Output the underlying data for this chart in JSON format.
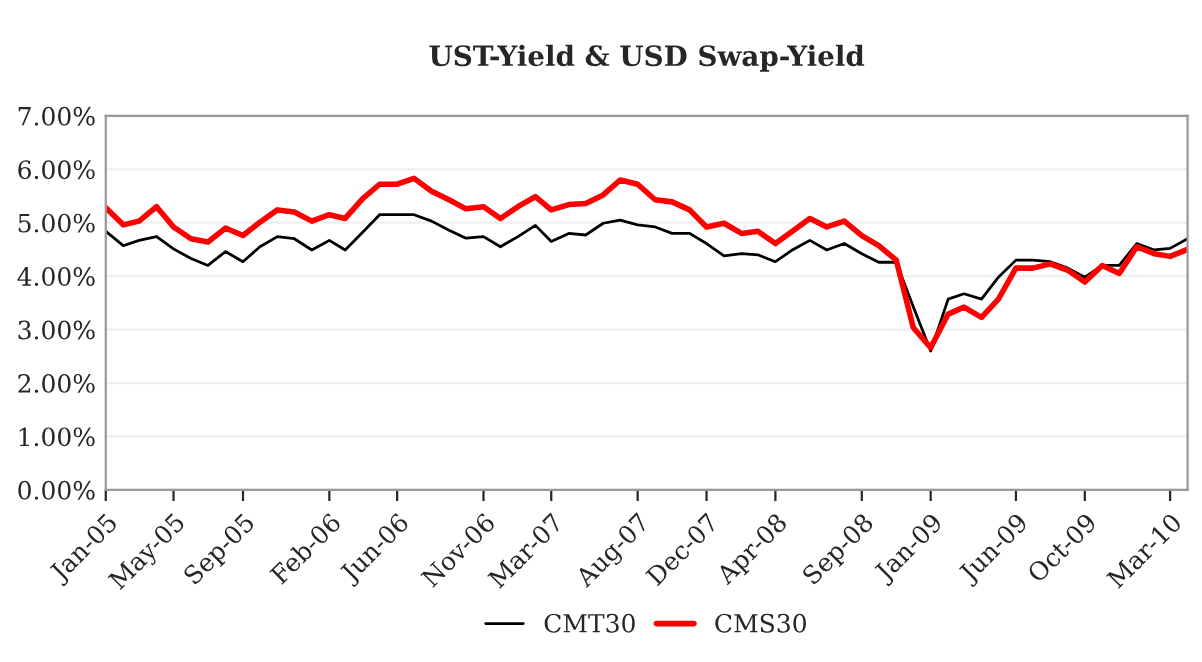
{
  "chart_data": {
    "type": "line",
    "title": "UST-Yield & USD Swap-Yield",
    "x": [
      "2005-01",
      "2005-02",
      "2005-03",
      "2005-04",
      "2005-05",
      "2005-06",
      "2005-07",
      "2005-08",
      "2005-09",
      "2005-10",
      "2005-11",
      "2005-12",
      "2006-01",
      "2006-02",
      "2006-03",
      "2006-04",
      "2006-05",
      "2006-06",
      "2006-07",
      "2006-08",
      "2006-09",
      "2006-10",
      "2006-11",
      "2006-12",
      "2007-01",
      "2007-02",
      "2007-03",
      "2007-04",
      "2007-05",
      "2007-06",
      "2007-07",
      "2007-08",
      "2007-09",
      "2007-10",
      "2007-11",
      "2007-12",
      "2008-01",
      "2008-02",
      "2008-03",
      "2008-04",
      "2008-05",
      "2008-06",
      "2008-07",
      "2008-08",
      "2008-09",
      "2008-10",
      "2008-11",
      "2008-12",
      "2009-01",
      "2009-02",
      "2009-03",
      "2009-04",
      "2009-05",
      "2009-06",
      "2009-07",
      "2009-08",
      "2009-09",
      "2009-10",
      "2009-11",
      "2009-12",
      "2010-01",
      "2010-02",
      "2010-03",
      "2010-04"
    ],
    "series": [
      {
        "name": "CMT30",
        "color": "#000000",
        "values": [
          4.84,
          4.57,
          4.67,
          4.74,
          4.51,
          4.33,
          4.2,
          4.46,
          4.27,
          4.55,
          4.74,
          4.7,
          4.49,
          4.67,
          4.49,
          4.82,
          5.15,
          5.15,
          5.15,
          5.03,
          4.86,
          4.71,
          4.74,
          4.55,
          4.74,
          4.95,
          4.65,
          4.8,
          4.77,
          4.99,
          5.05,
          4.96,
          4.92,
          4.8,
          4.8,
          4.61,
          4.38,
          4.42,
          4.4,
          4.27,
          4.49,
          4.67,
          4.49,
          4.61,
          4.42,
          4.26,
          4.26,
          3.43,
          2.6,
          3.57,
          3.67,
          3.57,
          3.98,
          4.3,
          4.3,
          4.27,
          4.15,
          3.98,
          4.2,
          4.2,
          4.61,
          4.49,
          4.52,
          4.7
        ]
      },
      {
        "name": "CMS30",
        "color": "#ff0000",
        "values": [
          5.28,
          4.96,
          5.03,
          5.3,
          4.92,
          4.7,
          4.64,
          4.9,
          4.76,
          5.01,
          5.24,
          5.2,
          5.03,
          5.15,
          5.08,
          5.45,
          5.72,
          5.72,
          5.83,
          5.59,
          5.43,
          5.26,
          5.3,
          5.08,
          5.3,
          5.49,
          5.24,
          5.34,
          5.36,
          5.52,
          5.8,
          5.72,
          5.43,
          5.39,
          5.24,
          4.92,
          4.99,
          4.8,
          4.84,
          4.61,
          4.84,
          5.08,
          4.92,
          5.03,
          4.76,
          4.57,
          4.3,
          3.04,
          2.66,
          3.29,
          3.42,
          3.23,
          3.57,
          4.15,
          4.15,
          4.23,
          4.11,
          3.89,
          4.2,
          4.05,
          4.55,
          4.42,
          4.37,
          4.5
        ]
      }
    ],
    "xlim": [
      "2005-01",
      "2010-04"
    ],
    "xticks": [
      {
        "value": "2005-01",
        "label": "Jan-05"
      },
      {
        "value": "2005-05",
        "label": "May-05"
      },
      {
        "value": "2005-09",
        "label": "Sep-05"
      },
      {
        "value": "2006-02",
        "label": "Feb-06"
      },
      {
        "value": "2006-06",
        "label": "Jun-06"
      },
      {
        "value": "2006-11",
        "label": "Nov-06"
      },
      {
        "value": "2007-03",
        "label": "Mar-07"
      },
      {
        "value": "2007-08",
        "label": "Aug-07"
      },
      {
        "value": "2007-12",
        "label": "Dec-07"
      },
      {
        "value": "2008-04",
        "label": "Apr-08"
      },
      {
        "value": "2008-09",
        "label": "Sep-08"
      },
      {
        "value": "2009-01",
        "label": "Jan-09"
      },
      {
        "value": "2009-06",
        "label": "Jun-09"
      },
      {
        "value": "2009-10",
        "label": "Oct-09"
      },
      {
        "value": "2010-03",
        "label": "Mar-10"
      }
    ],
    "ylim": [
      0,
      7
    ],
    "yticks": [
      {
        "value": 0,
        "label": "0.00%"
      },
      {
        "value": 1,
        "label": "1.00%"
      },
      {
        "value": 2,
        "label": "2.00%"
      },
      {
        "value": 3,
        "label": "3.00%"
      },
      {
        "value": 4,
        "label": "4.00%"
      },
      {
        "value": 5,
        "label": "5.00%"
      },
      {
        "value": 6,
        "label": "6.00%"
      },
      {
        "value": 7,
        "label": "7.00%"
      }
    ],
    "grid": "y",
    "legend": "bottom",
    "line_style": "solid"
  }
}
